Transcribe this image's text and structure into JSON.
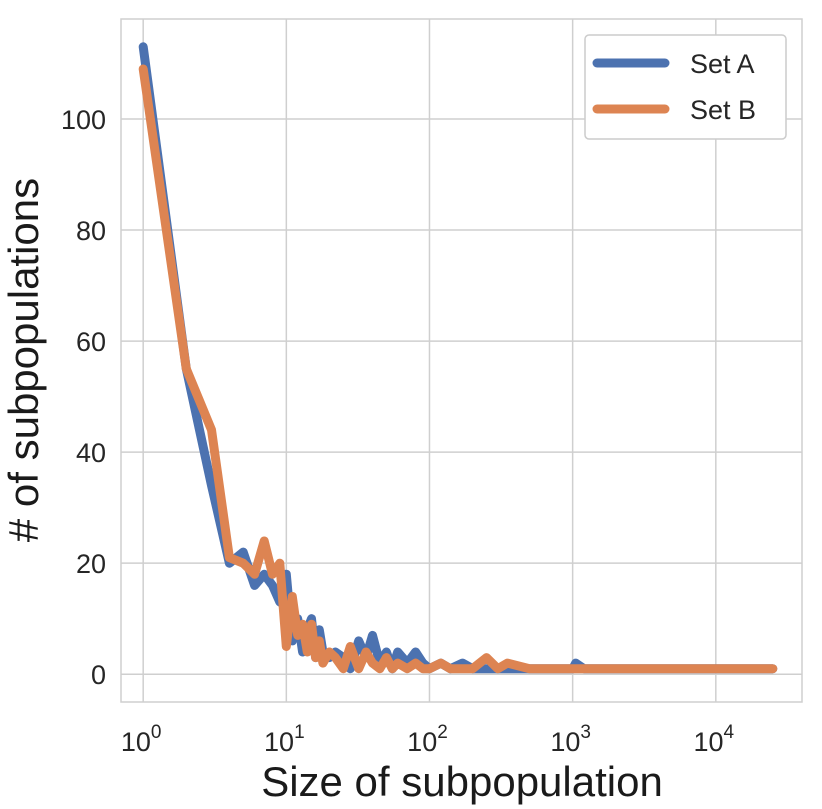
{
  "chart_data": {
    "type": "line",
    "xlabel": "Size of subpopulation",
    "ylabel": "# of subpopulations",
    "xscale": "log",
    "xlim": [
      0.7,
      40000
    ],
    "ylim": [
      -5,
      118
    ],
    "grid": true,
    "legend_position": "top-right",
    "x_tick_labels": [
      {
        "value": 1,
        "base": "10",
        "exp": "0"
      },
      {
        "value": 10,
        "base": "10",
        "exp": "1"
      },
      {
        "value": 100,
        "base": "10",
        "exp": "2"
      },
      {
        "value": 1000,
        "base": "10",
        "exp": "3"
      },
      {
        "value": 10000,
        "base": "10",
        "exp": "4"
      }
    ],
    "y_ticks": [
      0,
      20,
      40,
      60,
      80,
      100
    ],
    "series": [
      {
        "name": "Set A",
        "color": "#4c72b0",
        "x": [
          1,
          2,
          3,
          4,
          5,
          6,
          7,
          8,
          9,
          10,
          11,
          12,
          13,
          14,
          15,
          16,
          17,
          18,
          20,
          22,
          25,
          28,
          32,
          36,
          40,
          45,
          50,
          55,
          60,
          70,
          80,
          90,
          100,
          120,
          140,
          170,
          200,
          250,
          300,
          400,
          600,
          1000,
          1050,
          1200,
          2000,
          5000,
          10000,
          25000
        ],
        "y": [
          113,
          55,
          34,
          20,
          22,
          16,
          18,
          16,
          13,
          18,
          6,
          10,
          4,
          8,
          10,
          3,
          8,
          4,
          3,
          4,
          3,
          1,
          6,
          3,
          7,
          2,
          4,
          1,
          4,
          2,
          4,
          2,
          1,
          2,
          1,
          2,
          1,
          1,
          1,
          1,
          1,
          1,
          2,
          1,
          1,
          1,
          1,
          1
        ]
      },
      {
        "name": "Set B",
        "color": "#dd8452",
        "x": [
          1,
          2,
          3,
          4,
          5,
          6,
          7,
          8,
          9,
          10,
          11,
          12,
          13,
          14,
          15,
          16,
          17,
          18,
          20,
          22,
          25,
          28,
          32,
          36,
          40,
          45,
          50,
          55,
          60,
          70,
          80,
          90,
          100,
          120,
          140,
          170,
          200,
          250,
          300,
          350,
          500,
          1000,
          2000,
          5000,
          10000,
          25000
        ],
        "y": [
          109,
          55,
          44,
          21,
          20,
          18,
          24,
          18,
          20,
          5,
          14,
          7,
          9,
          4,
          9,
          3,
          6,
          2,
          4,
          3,
          1,
          5,
          1,
          4,
          2,
          1,
          3,
          1,
          2,
          1,
          2,
          1,
          1,
          2,
          1,
          1,
          1,
          3,
          1,
          2,
          1,
          1,
          1,
          1,
          1,
          1
        ]
      }
    ]
  }
}
